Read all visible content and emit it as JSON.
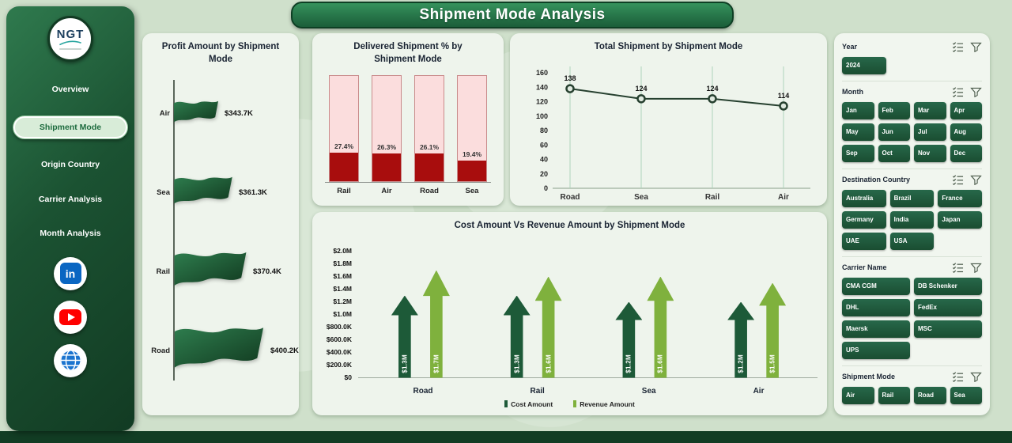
{
  "header": {
    "title": "Shipment Mode Analysis"
  },
  "sidebar": {
    "logo_text": "NGT",
    "nav": [
      {
        "label": "Overview",
        "active": false
      },
      {
        "label": "Shipment Mode",
        "active": true
      },
      {
        "label": "Origin Country",
        "active": false
      },
      {
        "label": "Carrier Analysis",
        "active": false
      },
      {
        "label": "Month Analysis",
        "active": false
      }
    ],
    "social": [
      {
        "name": "linkedin",
        "glyph": "in",
        "color": "#0a66c2"
      },
      {
        "name": "youtube",
        "color": "#ff0000"
      },
      {
        "name": "website",
        "color": "#1b74cf"
      }
    ]
  },
  "chart_data": [
    {
      "type": "bar",
      "variant": "flag-funnel",
      "title": "Profit Amount by Shipment Mode",
      "categories": [
        "Air",
        "Sea",
        "Rail",
        "Road"
      ],
      "values": [
        343.7,
        361.3,
        370.4,
        400.2
      ],
      "value_labels": [
        "$343.7K",
        "$361.3K",
        "$370.4K",
        "$400.2K"
      ],
      "unit": "USD thousands",
      "color": "#1e5c38"
    },
    {
      "type": "bar",
      "variant": "percent-fill",
      "title": "Delivered Shipment % by Shipment Mode",
      "categories": [
        "Rail",
        "Air",
        "Road",
        "Sea"
      ],
      "values": [
        27.4,
        26.3,
        26.1,
        19.4
      ],
      "value_labels": [
        "27.4%",
        "26.3%",
        "26.1%",
        "19.4%"
      ],
      "ylim": [
        0,
        100
      ],
      "bar_color": "#a80d0d",
      "bar_bg_color": "#fbdddd"
    },
    {
      "type": "line",
      "title": "Total Shipment by Shipment Mode",
      "categories": [
        "Road",
        "Sea",
        "Rail",
        "Air"
      ],
      "values": [
        138,
        124,
        124,
        114
      ],
      "ylim": [
        0,
        160
      ],
      "yticks": [
        0,
        20,
        40,
        60,
        80,
        100,
        120,
        140,
        160
      ],
      "line_color": "#26402f",
      "grid": "vertical"
    },
    {
      "type": "bar",
      "variant": "up-arrow",
      "title": "Cost Amount Vs Revenue Amount by Shipment Mode",
      "categories": [
        "Road",
        "Rail",
        "Sea",
        "Air"
      ],
      "series": [
        {
          "name": "Cost Amount",
          "values": [
            1.3,
            1.3,
            1.2,
            1.2
          ],
          "labels": [
            "$1.3M",
            "$1.3M",
            "$1.2M",
            "$1.2M"
          ],
          "color": "#1d5a38"
        },
        {
          "name": "Revenue Amount",
          "values": [
            1.7,
            1.6,
            1.6,
            1.5
          ],
          "labels": [
            "$1.7M",
            "$1.6M",
            "$1.6M",
            "$1.5M"
          ],
          "color": "#7fb13d"
        }
      ],
      "ylim": [
        0,
        2.0
      ],
      "ytick_labels": [
        "$0",
        "$200.0K",
        "$400.0K",
        "$600.0K",
        "$800.0K",
        "$1.0M",
        "$1.2M",
        "$1.4M",
        "$1.6M",
        "$1.8M",
        "$2.0M"
      ],
      "legend_position": "bottom"
    }
  ],
  "filters": {
    "sections": [
      {
        "label": "Year",
        "options": [
          "2024"
        ],
        "cols": 3
      },
      {
        "label": "Month",
        "options": [
          "Jan",
          "Feb",
          "Mar",
          "Apr",
          "May",
          "Jun",
          "Jul",
          "Aug",
          "Sep",
          "Oct",
          "Nov",
          "Dec"
        ],
        "cols": 4
      },
      {
        "label": "Destination Country",
        "options": [
          "Australia",
          "Brazil",
          "France",
          "Germany",
          "India",
          "Japan",
          "UAE",
          "USA"
        ],
        "cols": 3
      },
      {
        "label": "Carrier Name",
        "options": [
          "CMA CGM",
          "DB Schenker",
          "DHL",
          "FedEx",
          "Maersk",
          "MSC",
          "UPS"
        ],
        "cols": 2
      },
      {
        "label": "Shipment Mode",
        "options": [
          "Air",
          "Rail",
          "Road",
          "Sea"
        ],
        "cols": 4
      }
    ]
  },
  "colors": {
    "accent_dark_green": "#1d5a38",
    "accent_light_green": "#7fb13d",
    "accent_red": "#a80d0d",
    "bar_bg_pink": "#fbdddd",
    "banner_green": "#2b8050",
    "sidebar_green": "#1b5232",
    "page_bg": "#cfe0cb"
  }
}
